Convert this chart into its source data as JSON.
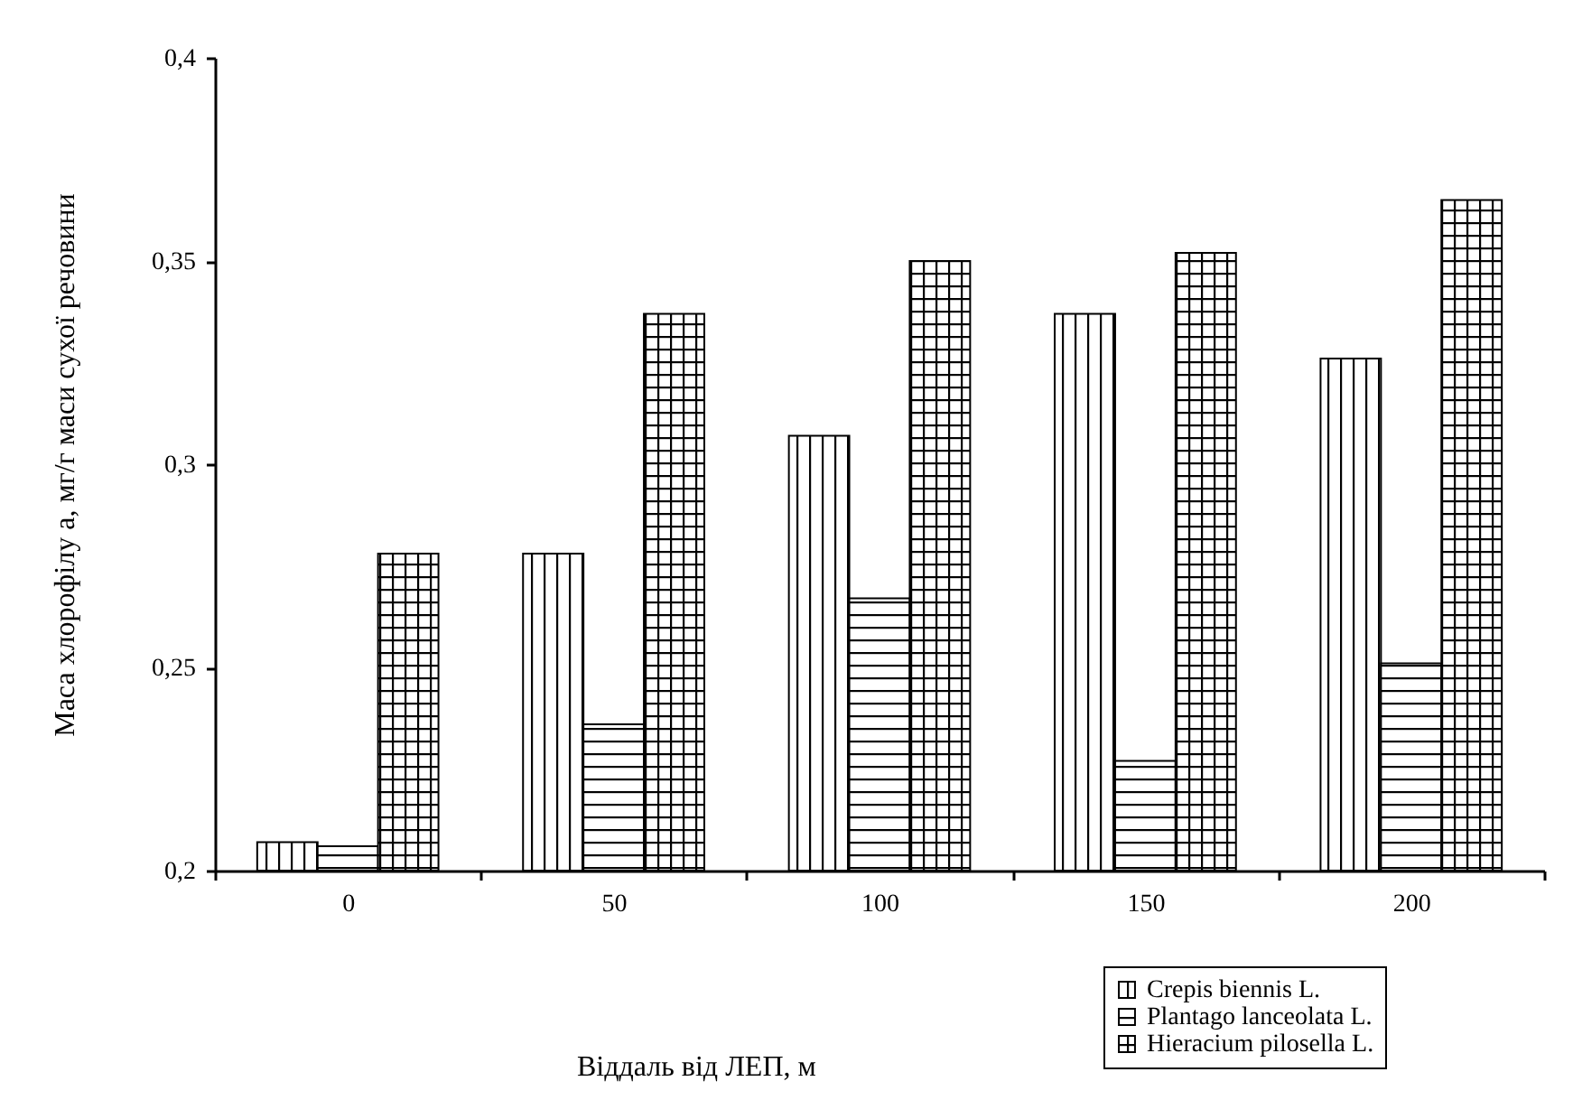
{
  "chart_data": {
    "type": "bar",
    "xlabel": "Віддаль від ЛЕП, м",
    "ylabel": "Маса хлорофілу a, мг/г маси сухої речовини",
    "categories": [
      "0",
      "50",
      "100",
      "150",
      "200"
    ],
    "series": [
      {
        "name": "Crepis biennis L.",
        "color": "#000000",
        "values": [
          0.207,
          0.278,
          0.307,
          0.337,
          0.326
        ]
      },
      {
        "name": "Plantago lanceolata L.",
        "color": "#000000",
        "values": [
          0.206,
          0.236,
          0.267,
          0.227,
          0.251
        ]
      },
      {
        "name": "Hieracium pilosella L.",
        "color": "#000000",
        "values": [
          0.278,
          0.337,
          0.35,
          0.352,
          0.365
        ]
      }
    ],
    "ylim": [
      0.2,
      0.4
    ],
    "yticks": [
      {
        "value": 0.2,
        "label": "0,2"
      },
      {
        "value": 0.25,
        "label": "0,25"
      },
      {
        "value": 0.3,
        "label": "0,3"
      },
      {
        "value": 0.35,
        "label": "0,35"
      },
      {
        "value": 0.4,
        "label": "0,4"
      }
    ],
    "grid": false,
    "legend": "bottom right"
  }
}
